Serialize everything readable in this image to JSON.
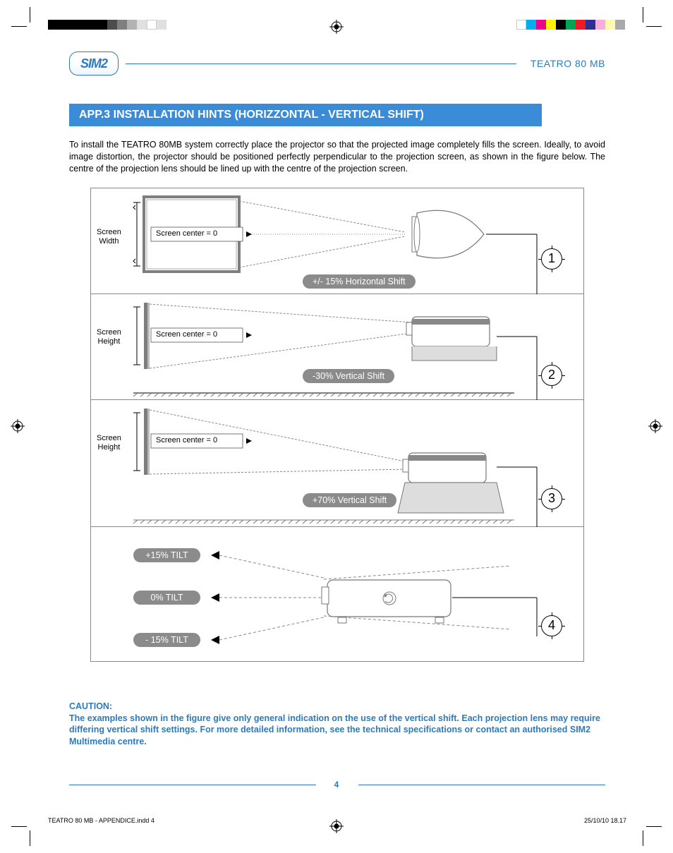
{
  "brand": {
    "logo_text": "SIM2",
    "logo_border_color": "#2a7bbf",
    "product_name": "TEATRO 80 MB",
    "accent_color": "#2a7bbf",
    "title_bar_color": "#3a8bd8"
  },
  "title": "APP.3 INSTALLATION HINTS (HORIZZONTAL - VERTICAL SHIFT)",
  "intro_text": "To install the TEATRO 80MB system correctly place the projector so that the projected image completely fills the screen. Ideally, to avoid image distortion, the projector should be positioned perfectly perpendicular to the projection screen, as shown in the figure below. The centre of the projection lens should be lined up with the centre of the projection screen.",
  "diagram": {
    "border_color": "#888888",
    "chip_bg": "#8b8b8b",
    "chip_text_color": "#ffffff",
    "indicator_text": "Screen center = 0",
    "rows": [
      {
        "id": 1,
        "side_label_l1": "Screen",
        "side_label_l2": "Width",
        "center_label": "Screen center = 0",
        "chip_label": "+/- 15% Horizontal Shift",
        "number": "1"
      },
      {
        "id": 2,
        "side_label_l1": "Screen",
        "side_label_l2": "Height",
        "center_label": "Screen center = 0",
        "chip_label": "-30% Vertical Shift",
        "number": "2"
      },
      {
        "id": 3,
        "side_label_l1": "Screen",
        "side_label_l2": "Height",
        "center_label": "Screen center = 0",
        "chip_label": "+70% Vertical Shift",
        "number": "3"
      },
      {
        "id": 4,
        "tilts": [
          {
            "label": "+15%  TILT"
          },
          {
            "label": "0%  TILT"
          },
          {
            "label": "- 15%  TILT"
          }
        ],
        "number": "4"
      }
    ]
  },
  "caution": {
    "heading": "CAUTION:",
    "body": "The examples shown in the figure give only general indication on the use of the vertical shift. Each projection lens may require differing vertical shift settings. For more detailed information, see the technical specifications or contact an authorised SIM2 Multimedia centre."
  },
  "page_number": "4",
  "footer": {
    "source": "TEATRO 80 MB - APPENDICE.indd   4",
    "date": "25/10/10   18.17"
  },
  "print_marks": {
    "left_swatches": [
      {
        "w": 84,
        "color": "#000000"
      },
      {
        "w": 14,
        "color": "#4d4d4d"
      },
      {
        "w": 14,
        "color": "#808080"
      },
      {
        "w": 14,
        "color": "#b3b3b3"
      },
      {
        "w": 14,
        "color": "#e0e0e0"
      },
      {
        "w": 14,
        "color": "#ffffff"
      },
      {
        "w": 14,
        "color": "#e0e0e0"
      }
    ],
    "right_swatches": [
      {
        "w": 14,
        "color": "#ffffff"
      },
      {
        "w": 14,
        "color": "#00aeef"
      },
      {
        "w": 14,
        "color": "#ec008c"
      },
      {
        "w": 14,
        "color": "#fff200"
      },
      {
        "w": 14,
        "color": "#000000"
      },
      {
        "w": 14,
        "color": "#00a651"
      },
      {
        "w": 14,
        "color": "#ed1c24"
      },
      {
        "w": 14,
        "color": "#2e3192"
      },
      {
        "w": 14,
        "color": "#f7adde"
      },
      {
        "w": 14,
        "color": "#fff9ae"
      },
      {
        "w": 14,
        "color": "#a7a9ac"
      }
    ]
  }
}
